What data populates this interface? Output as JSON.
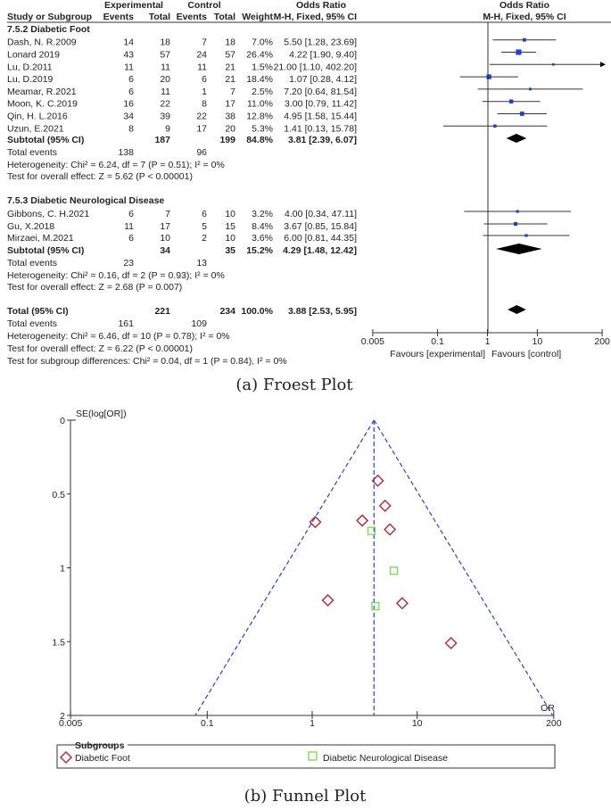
{
  "forest": {
    "headers": {
      "experimental": "Experimental",
      "control": "Control",
      "odds_ratio": "Odds Ratio",
      "study": "Study or Subgroup",
      "events": "Events",
      "total": "Total",
      "weight": "Weight",
      "method": "M-H, Fixed, 95% CI",
      "plot_title": "Odds Ratio",
      "plot_method": "M-H, Fixed, 95% CI"
    },
    "subgroups": [
      {
        "title": "7.5.2 Diabetic Foot",
        "studies": [
          {
            "study": "Dash, N. R.2009",
            "e_events": "14",
            "e_total": "18",
            "c_events": "7",
            "c_total": "18",
            "weight": "7.0%",
            "ci_text": "5.50 [1.28, 23.69]",
            "or": 5.5,
            "lo": 1.28,
            "hi": 23.69,
            "w": 7.0
          },
          {
            "study": "Lonard 2019",
            "e_events": "43",
            "e_total": "57",
            "c_events": "24",
            "c_total": "57",
            "weight": "26.4%",
            "ci_text": "4.22 [1.90, 9.40]",
            "or": 4.22,
            "lo": 1.9,
            "hi": 9.4,
            "w": 26.4
          },
          {
            "study": "Lu, D.2011",
            "e_events": "11",
            "e_total": "11",
            "c_events": "11",
            "c_total": "21",
            "weight": "1.5%",
            "ci_text": "21.00 [1.10, 402.20]",
            "or": 21.0,
            "lo": 1.1,
            "hi": 402.2,
            "w": 1.5
          },
          {
            "study": "Lu, D.2019",
            "e_events": "6",
            "e_total": "20",
            "c_events": "6",
            "c_total": "21",
            "weight": "18.4%",
            "ci_text": "1.07 [0.28, 4.12]",
            "or": 1.07,
            "lo": 0.28,
            "hi": 4.12,
            "w": 18.4
          },
          {
            "study": "Meamar, R.2021",
            "e_events": "6",
            "e_total": "11",
            "c_events": "1",
            "c_total": "7",
            "weight": "2.5%",
            "ci_text": "7.20 [0.64, 81.54]",
            "or": 7.2,
            "lo": 0.64,
            "hi": 81.54,
            "w": 2.5
          },
          {
            "study": "Moon, K. C.2019",
            "e_events": "16",
            "e_total": "22",
            "c_events": "8",
            "c_total": "17",
            "weight": "11.0%",
            "ci_text": "3.00 [0.79, 11.42]",
            "or": 3.0,
            "lo": 0.79,
            "hi": 11.42,
            "w": 11.0
          },
          {
            "study": "Qin, H. L.2016",
            "e_events": "34",
            "e_total": "39",
            "c_events": "22",
            "c_total": "38",
            "weight": "12.8%",
            "ci_text": "4.95 [1.58, 15.44]",
            "or": 4.95,
            "lo": 1.58,
            "hi": 15.44,
            "w": 12.8
          },
          {
            "study": "Uzun, E.2021",
            "e_events": "8",
            "e_total": "9",
            "c_events": "17",
            "c_total": "20",
            "weight": "5.3%",
            "ci_text": "1.41 [0.13, 15.78]",
            "or": 1.41,
            "lo": 0.13,
            "hi": 15.78,
            "w": 5.3
          }
        ],
        "subtotal": {
          "label": "Subtotal (95% CI)",
          "e_total": "187",
          "c_total": "199",
          "weight": "84.8%",
          "ci_text": "3.81 [2.39, 6.07]",
          "or": 3.81,
          "lo": 2.39,
          "hi": 6.07
        },
        "total_events": {
          "label": "Total events",
          "e": "138",
          "c": "96"
        },
        "heterogeneity": "Heterogeneity: Chi² = 6.24, df = 7 (P = 0.51); I² = 0%",
        "overall": "Test for overall effect: Z = 5.62 (P < 0.00001)"
      },
      {
        "title": "7.5.3 Diabetic Neurological Disease",
        "studies": [
          {
            "study": "Gibbons, C. H.2021",
            "e_events": "6",
            "e_total": "7",
            "c_events": "6",
            "c_total": "10",
            "weight": "3.2%",
            "ci_text": "4.00 [0.34, 47.11]",
            "or": 4.0,
            "lo": 0.34,
            "hi": 47.11,
            "w": 3.2
          },
          {
            "study": "Gu, X.2018",
            "e_events": "11",
            "e_total": "17",
            "c_events": "5",
            "c_total": "15",
            "weight": "8.4%",
            "ci_text": "3.67 [0.85, 15.84]",
            "or": 3.67,
            "lo": 0.85,
            "hi": 15.84,
            "w": 8.4
          },
          {
            "study": "Mirzaei, M.2021",
            "e_events": "6",
            "e_total": "10",
            "c_events": "2",
            "c_total": "10",
            "weight": "3.6%",
            "ci_text": "6.00 [0.81, 44.35]",
            "or": 6.0,
            "lo": 0.81,
            "hi": 44.35,
            "w": 3.6
          }
        ],
        "subtotal": {
          "label": "Subtotal (95% CI)",
          "e_total": "34",
          "c_total": "35",
          "weight": "15.2%",
          "ci_text": "4.29 [1.48, 12.42]",
          "or": 4.29,
          "lo": 1.48,
          "hi": 12.42
        },
        "total_events": {
          "label": "Total events",
          "e": "23",
          "c": "13"
        },
        "heterogeneity": "Heterogeneity: Chi² = 0.16, df = 2 (P = 0.93); I² = 0%",
        "overall": "Test for overall effect: Z = 2.68 (P = 0.007)"
      }
    ],
    "total": {
      "label": "Total (95% CI)",
      "e_total": "221",
      "c_total": "234",
      "weight": "100.0%",
      "ci_text": "3.88 [2.53, 5.95]",
      "or": 3.88,
      "lo": 2.53,
      "hi": 5.95
    },
    "total_events": {
      "label": "Total events",
      "e": "161",
      "c": "109"
    },
    "heterogeneity": "Heterogeneity: Chi² = 6.46, df = 10 (P = 0.78); I² = 0%",
    "overall": "Test for overall effect: Z = 6.22 (P < 0.00001)",
    "subgroup_diff": "Test for subgroup differences: Chi² = 0.04, df = 1 (P = 0.84), I² = 0%",
    "axis": {
      "scale": "log",
      "ticks": [
        0.005,
        0.1,
        1,
        10,
        200
      ],
      "tick_labels": [
        "0.005",
        "0.1",
        "1",
        "10",
        "200"
      ],
      "favours_left": "Favours [experimental]",
      "favours_right": "Favours [control]"
    },
    "colors": {
      "square": "#1f3fd6",
      "diamond": "#000000",
      "ci_line": "#333333"
    },
    "caption": "(a) Froest Plot"
  },
  "chart_data": {
    "type": "scatter",
    "title": "",
    "xlabel": "OR",
    "ylabel": "SE(log[OR])",
    "x_scale": "log",
    "xlim": [
      0.005,
      200
    ],
    "ylim": [
      0,
      2
    ],
    "y_inverted": true,
    "x_ticks": [
      "0.005",
      "0.1",
      "1",
      "10",
      "200"
    ],
    "y_ticks": [
      "0",
      "0.5",
      "1",
      "1.5",
      "2"
    ],
    "pooled_or": 3.88,
    "funnel_se_max": 2,
    "legend": {
      "title": "Subgroups",
      "placement": "bottom"
    },
    "series": [
      {
        "name": "Diabetic Foot",
        "marker": "diamond",
        "color": "#b5303f",
        "points": [
          {
            "or": 5.5,
            "se": 0.74
          },
          {
            "or": 4.22,
            "se": 0.41
          },
          {
            "or": 21.0,
            "se": 1.51
          },
          {
            "or": 1.07,
            "se": 0.69
          },
          {
            "or": 7.2,
            "se": 1.24
          },
          {
            "or": 3.0,
            "se": 0.68
          },
          {
            "or": 4.95,
            "se": 0.58
          },
          {
            "or": 1.41,
            "se": 1.22
          }
        ]
      },
      {
        "name": "Diabetic Neurological Disease",
        "marker": "square",
        "color": "#6fdc4a",
        "points": [
          {
            "or": 4.0,
            "se": 1.26
          },
          {
            "or": 3.67,
            "se": 0.75
          },
          {
            "or": 6.0,
            "se": 1.02
          }
        ]
      }
    ],
    "line_color": "#2a3fd0",
    "caption": "(b)  Funnel Plot"
  }
}
